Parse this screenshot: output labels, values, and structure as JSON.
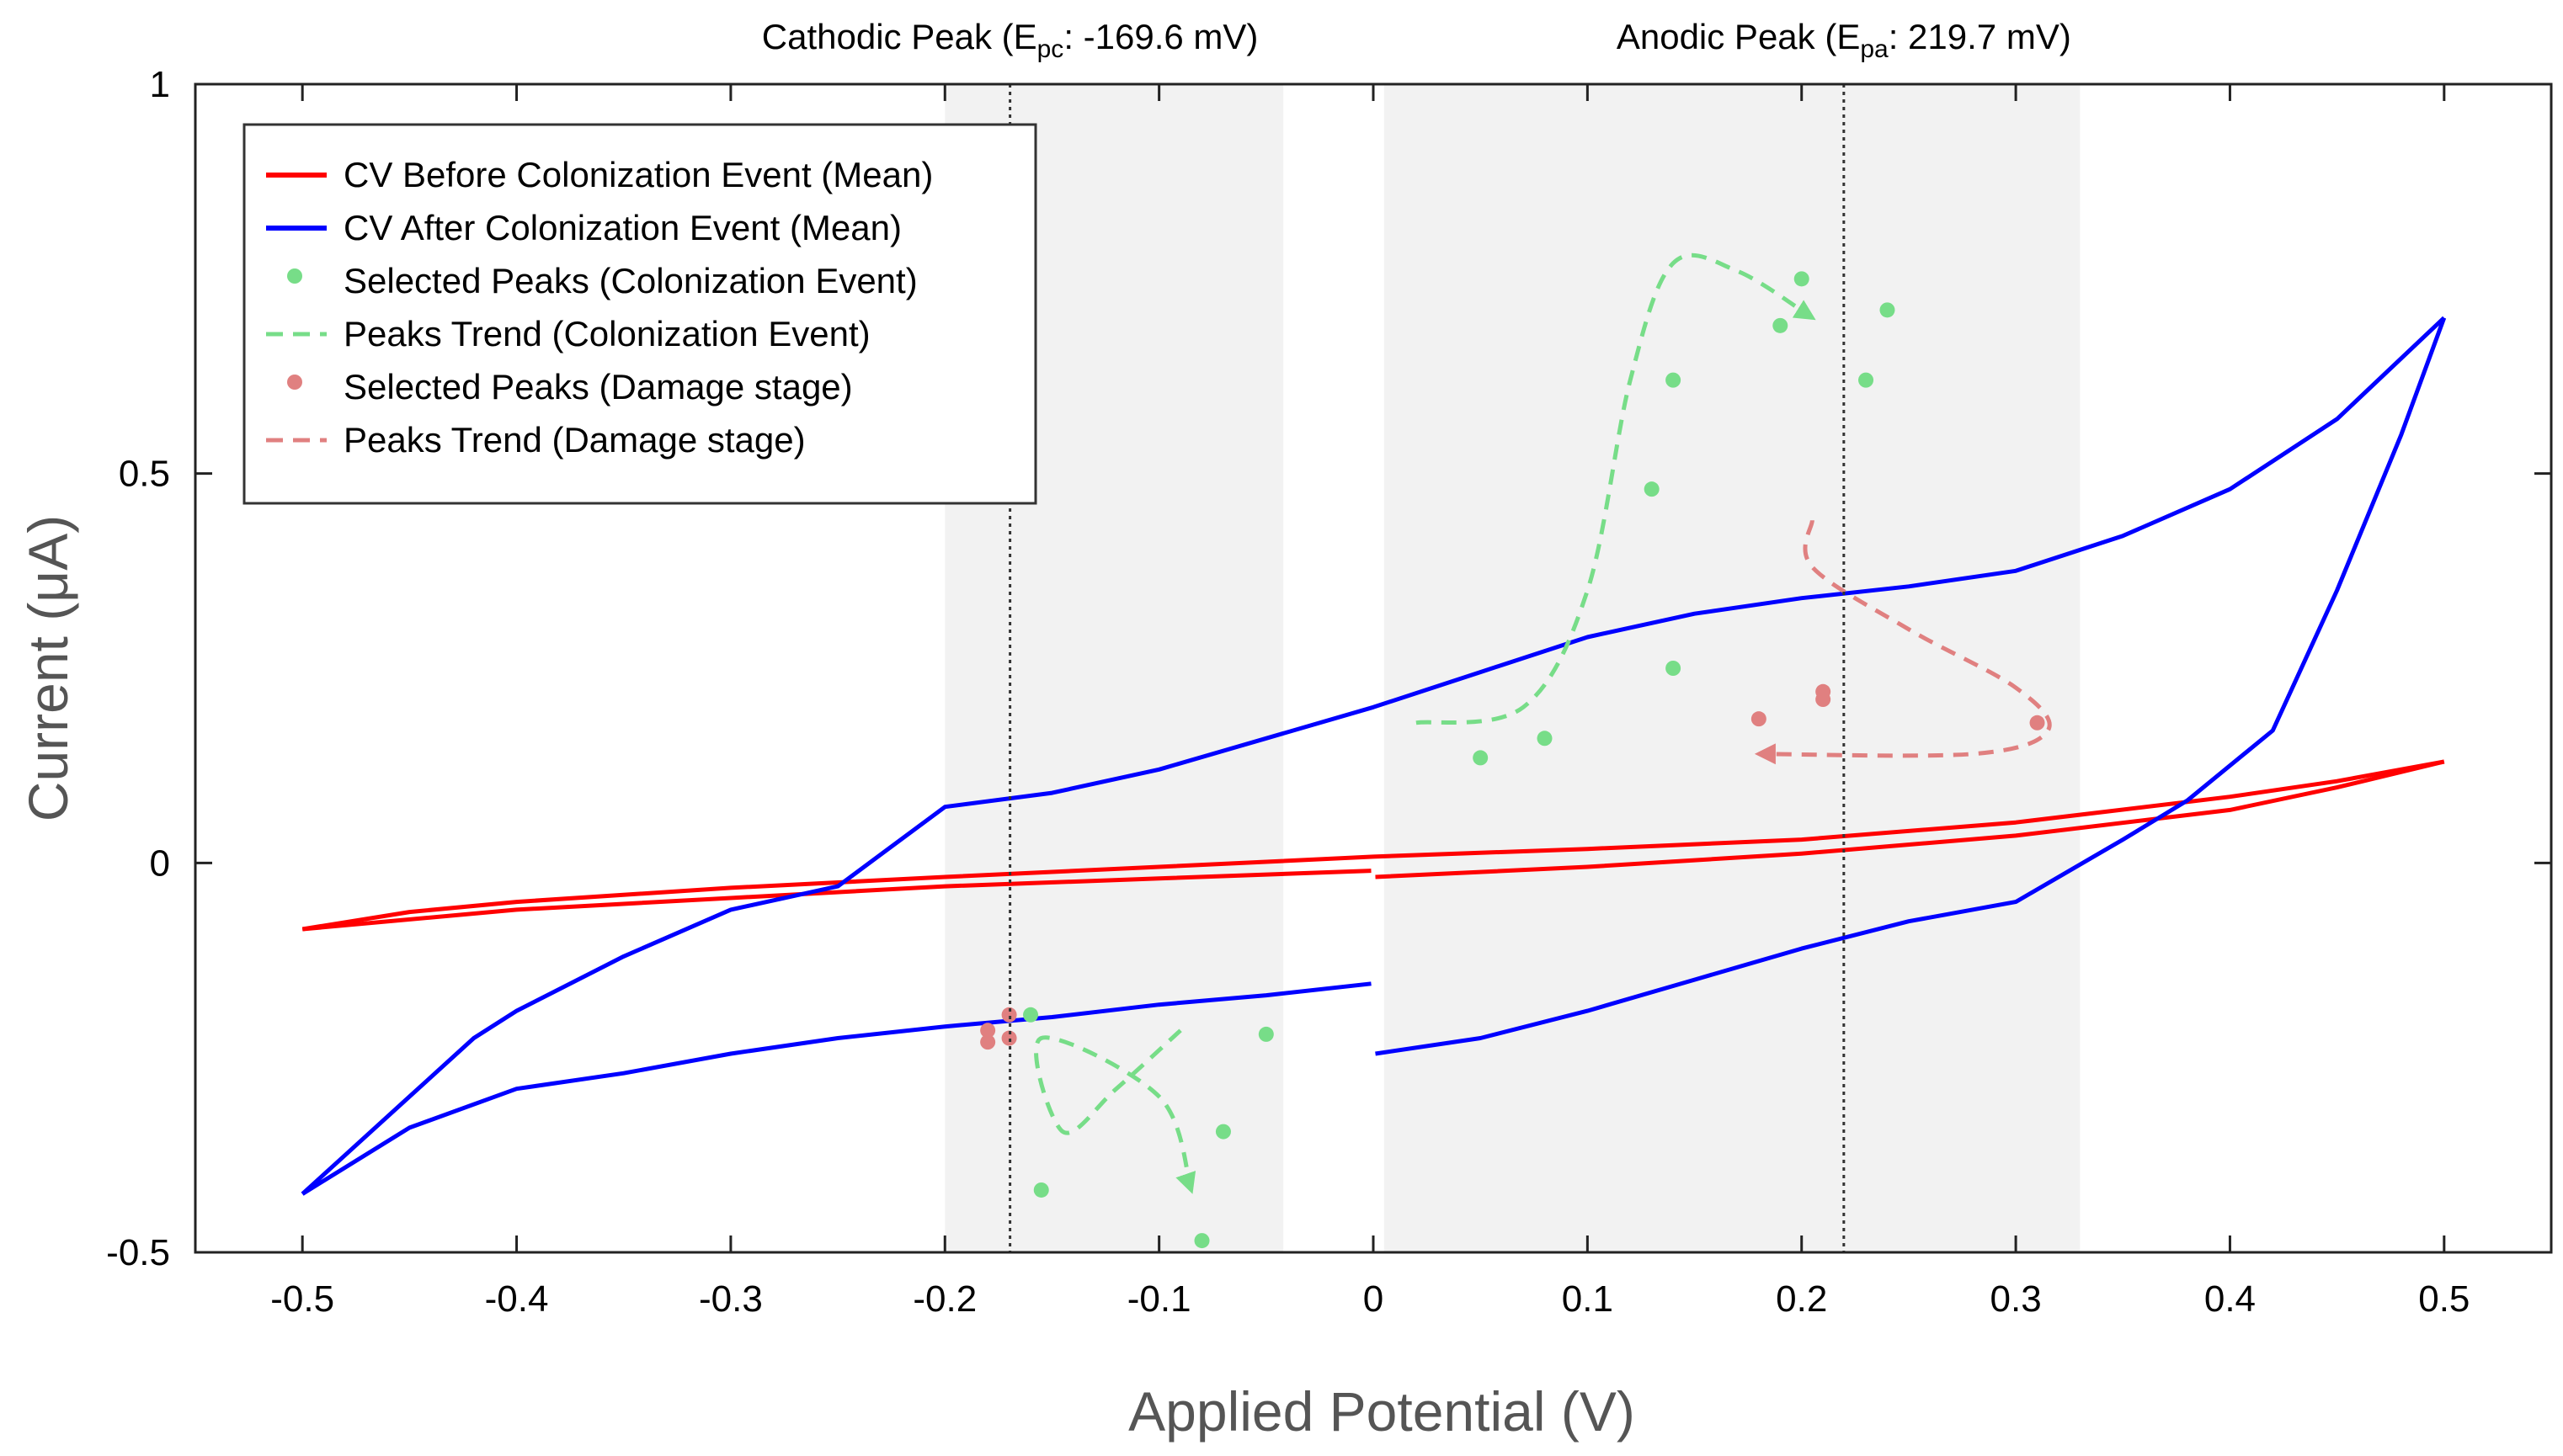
{
  "chart_data": {
    "type": "line",
    "title": "",
    "xlabel": "Applied Potential (V)",
    "ylabel": "Current (μA)",
    "xlim": [
      -0.55,
      0.55
    ],
    "ylim": [
      -0.5,
      1
    ],
    "xticks": [
      -0.5,
      -0.4,
      -0.3,
      -0.2,
      -0.1,
      0,
      0.1,
      0.2,
      0.3,
      0.4,
      0.5
    ],
    "xtick_labels": [
      "-0.5",
      "-0.4",
      "-0.3",
      "-0.2",
      "-0.1",
      "0",
      "0.1",
      "0.2",
      "0.3",
      "0.4",
      "0.5"
    ],
    "yticks": [
      -0.5,
      0,
      0.5,
      1
    ],
    "ytick_labels": [
      "-0.5",
      "0",
      "0.5",
      "1"
    ],
    "grid": false,
    "legend_position": "top-left",
    "shaded_regions": [
      {
        "x_from": -0.2,
        "x_to": -0.042
      },
      {
        "x_from": 0.005,
        "x_to": 0.33
      }
    ],
    "peak_markers": [
      {
        "name": "cathodic",
        "x": -0.1696,
        "label_prefix": "Cathodic Peak (E",
        "label_sub": "pc",
        "label_suffix": ": -169.6 mV)"
      },
      {
        "name": "anodic",
        "x": 0.2197,
        "label_prefix": "Anodic Peak (E",
        "label_sub": "pa",
        "label_suffix": ": 219.7 mV)"
      }
    ],
    "legend": [
      {
        "label": "CV Before Colonization Event (Mean)",
        "kind": "line",
        "color": "#ff0000"
      },
      {
        "label": "CV After Colonization Event (Mean)",
        "kind": "line",
        "color": "#0000ff"
      },
      {
        "label": "Selected Peaks (Colonization Event)",
        "kind": "dot",
        "color": "#77dd88"
      },
      {
        "label": "Peaks Trend (Colonization Event)",
        "kind": "dash",
        "color": "#77dd88"
      },
      {
        "label": "Selected Peaks (Damage stage)",
        "kind": "dot",
        "color": "#e08080"
      },
      {
        "label": "Peaks Trend (Damage stage)",
        "kind": "dash",
        "color": "#e08080"
      }
    ],
    "series": [
      {
        "name": "CV Before Colonization Event (Mean)",
        "color": "#ff0000",
        "segments": [
          [
            [
              -0.5,
              -0.085
            ],
            [
              -0.45,
              -0.063
            ],
            [
              -0.4,
              -0.05
            ],
            [
              -0.3,
              -0.032
            ],
            [
              -0.2,
              -0.018
            ],
            [
              -0.1,
              -0.005
            ],
            [
              0,
              0.008
            ],
            [
              0.1,
              0.018
            ],
            [
              0.2,
              0.03
            ],
            [
              0.3,
              0.052
            ],
            [
              0.4,
              0.085
            ],
            [
              0.45,
              0.105
            ],
            [
              0.5,
              0.13
            ]
          ],
          [
            [
              0.5,
              0.13
            ],
            [
              0.45,
              0.097
            ],
            [
              0.4,
              0.068
            ],
            [
              0.3,
              0.035
            ],
            [
              0.2,
              0.012
            ],
            [
              0.1,
              -0.005
            ],
            [
              0.001,
              -0.018
            ]
          ],
          [
            [
              -0.001,
              -0.01
            ],
            [
              -0.1,
              -0.02
            ],
            [
              -0.2,
              -0.03
            ],
            [
              -0.3,
              -0.045
            ],
            [
              -0.4,
              -0.06
            ],
            [
              -0.5,
              -0.085
            ]
          ]
        ]
      },
      {
        "name": "CV After Colonization Event (Mean)",
        "color": "#0000ff",
        "segments": [
          [
            [
              -0.5,
              -0.425
            ],
            [
              -0.48,
              -0.375
            ],
            [
              -0.45,
              -0.3
            ],
            [
              -0.42,
              -0.225
            ],
            [
              -0.4,
              -0.19
            ],
            [
              -0.35,
              -0.12
            ],
            [
              -0.3,
              -0.06
            ],
            [
              -0.25,
              -0.03
            ],
            [
              -0.2,
              0.072
            ],
            [
              -0.15,
              0.09
            ],
            [
              -0.1,
              0.12
            ],
            [
              -0.05,
              0.16
            ],
            [
              0,
              0.2
            ],
            [
              0.05,
              0.245
            ],
            [
              0.1,
              0.29
            ],
            [
              0.15,
              0.32
            ],
            [
              0.2,
              0.34
            ],
            [
              0.25,
              0.355
            ],
            [
              0.3,
              0.375
            ],
            [
              0.35,
              0.42
            ],
            [
              0.4,
              0.48
            ],
            [
              0.45,
              0.57
            ],
            [
              0.5,
              0.7
            ]
          ],
          [
            [
              0.5,
              0.7
            ],
            [
              0.48,
              0.55
            ],
            [
              0.45,
              0.35
            ],
            [
              0.42,
              0.17
            ],
            [
              0.38,
              0.08
            ],
            [
              0.35,
              0.03
            ],
            [
              0.3,
              -0.05
            ],
            [
              0.25,
              -0.075
            ],
            [
              0.2,
              -0.11
            ],
            [
              0.15,
              -0.15
            ],
            [
              0.1,
              -0.19
            ],
            [
              0.05,
              -0.225
            ],
            [
              0.001,
              -0.245
            ]
          ],
          [
            [
              -0.001,
              -0.155
            ],
            [
              -0.05,
              -0.17
            ],
            [
              -0.1,
              -0.182
            ],
            [
              -0.15,
              -0.198
            ],
            [
              -0.2,
              -0.21
            ],
            [
              -0.25,
              -0.225
            ],
            [
              -0.3,
              -0.245
            ],
            [
              -0.35,
              -0.27
            ],
            [
              -0.4,
              -0.29
            ],
            [
              -0.45,
              -0.34
            ],
            [
              -0.5,
              -0.425
            ]
          ]
        ]
      }
    ],
    "colonization_peaks": {
      "color": "#77dd88",
      "points": [
        [
          0.05,
          0.135
        ],
        [
          0.08,
          0.16
        ],
        [
          0.13,
          0.48
        ],
        [
          0.14,
          0.62
        ],
        [
          0.14,
          0.25
        ],
        [
          0.2,
          0.75
        ],
        [
          0.19,
          0.69
        ],
        [
          0.23,
          0.62
        ],
        [
          0.24,
          0.71
        ],
        [
          -0.155,
          -0.42
        ],
        [
          -0.07,
          -0.345
        ],
        [
          -0.08,
          -0.485
        ],
        [
          -0.05,
          -0.22
        ],
        [
          -0.16,
          -0.195
        ]
      ],
      "trends": [
        [
          [
            0.02,
            0.18
          ],
          [
            0.07,
            0.2
          ],
          [
            0.1,
            0.35
          ],
          [
            0.12,
            0.62
          ],
          [
            0.14,
            0.77
          ],
          [
            0.17,
            0.76
          ],
          [
            0.205,
            0.7
          ]
        ],
        [
          [
            -0.09,
            -0.215
          ],
          [
            -0.12,
            -0.29
          ],
          [
            -0.145,
            -0.345
          ],
          [
            -0.155,
            -0.225
          ],
          [
            -0.1,
            -0.3
          ],
          [
            -0.085,
            -0.42
          ]
        ]
      ]
    },
    "damage_peaks": {
      "color": "#e08080",
      "points": [
        [
          0.18,
          0.185
        ],
        [
          0.21,
          0.21
        ],
        [
          0.21,
          0.22
        ],
        [
          0.31,
          0.18
        ],
        [
          -0.18,
          -0.23
        ],
        [
          -0.18,
          -0.215
        ],
        [
          -0.17,
          -0.225
        ],
        [
          -0.17,
          -0.195
        ]
      ],
      "trends": [
        [
          [
            0.205,
            0.44
          ],
          [
            0.205,
            0.38
          ],
          [
            0.25,
            0.3
          ],
          [
            0.3,
            0.225
          ],
          [
            0.315,
            0.17
          ],
          [
            0.28,
            0.14
          ],
          [
            0.18,
            0.14
          ]
        ]
      ]
    }
  }
}
